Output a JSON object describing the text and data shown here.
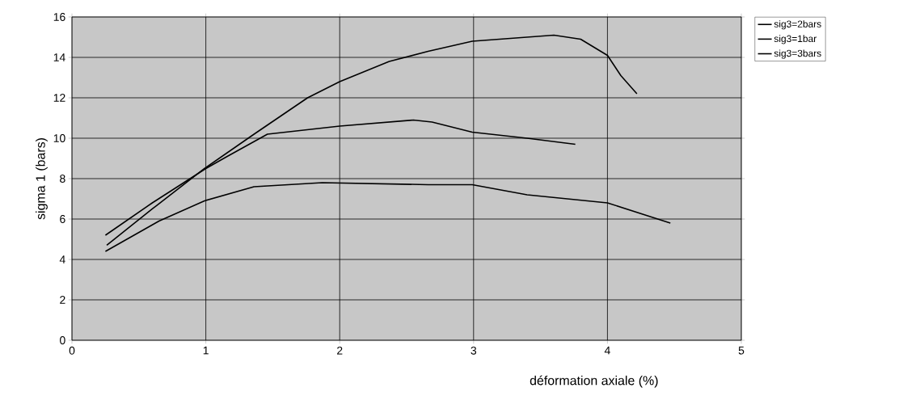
{
  "chart_data": {
    "type": "line",
    "xlabel": "déformation axiale (%)",
    "ylabel": "sigma 1 (bars)",
    "xlim": [
      0,
      5
    ],
    "ylim": [
      0,
      16
    ],
    "xticks": [
      0,
      1,
      2,
      3,
      4,
      5
    ],
    "yticks": [
      0,
      2,
      4,
      6,
      8,
      10,
      12,
      14,
      16
    ],
    "grid": true,
    "legend": "right",
    "marker": "none",
    "line_style": "solid",
    "series": [
      {
        "name": "sig3=2bars",
        "color": "#000000",
        "x": [
          0.25,
          0.6,
          1.0,
          1.16,
          1.46,
          2.0,
          2.55,
          2.69,
          2.99,
          3.4,
          3.76
        ],
        "values": [
          5.2,
          6.8,
          8.5,
          9.1,
          10.2,
          10.6,
          10.9,
          10.8,
          10.3,
          10.0,
          9.7
        ]
      },
      {
        "name": "sig3=1bar",
        "color": "#000000",
        "x": [
          0.25,
          0.65,
          0.99,
          1.36,
          1.87,
          2.66,
          2.99,
          3.4,
          4.0,
          4.47
        ],
        "values": [
          4.4,
          5.9,
          6.9,
          7.6,
          7.8,
          7.7,
          7.7,
          7.2,
          6.8,
          5.8
        ]
      },
      {
        "name": "sig3=3bars",
        "color": "#000000",
        "x": [
          0.26,
          0.6,
          0.99,
          1.36,
          1.76,
          2.0,
          2.37,
          2.66,
          2.99,
          3.6,
          3.8,
          4.0,
          4.1,
          4.22
        ],
        "values": [
          4.7,
          6.5,
          8.5,
          10.2,
          12.0,
          12.8,
          13.8,
          14.3,
          14.8,
          15.1,
          14.9,
          14.1,
          13.1,
          12.2
        ]
      }
    ]
  }
}
